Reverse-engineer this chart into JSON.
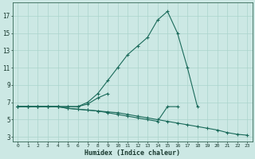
{
  "xlabel": "Humidex (Indice chaleur)",
  "background_color": "#cce8e4",
  "grid_color": "#aad4cc",
  "line_color": "#1a6a5a",
  "x_values": [
    0,
    1,
    2,
    3,
    4,
    5,
    6,
    7,
    8,
    9,
    10,
    11,
    12,
    13,
    14,
    15,
    16,
    17,
    18,
    19,
    20,
    21,
    22,
    23
  ],
  "series": {
    "line1": [
      6.5,
      6.5,
      6.5,
      6.5,
      6.5,
      6.5,
      6.5,
      7.0,
      8.0,
      9.5,
      11.0,
      12.5,
      13.5,
      14.5,
      16.5,
      17.5,
      15.0,
      11.0,
      6.5,
      null,
      null,
      null,
      null,
      null
    ],
    "line2": [
      6.5,
      6.5,
      6.5,
      6.5,
      6.5,
      6.5,
      6.5,
      6.8,
      7.5,
      8.0,
      null,
      null,
      null,
      null,
      null,
      null,
      null,
      null,
      null,
      null,
      null,
      null,
      null,
      null
    ],
    "line3": [
      6.5,
      6.5,
      6.5,
      6.5,
      6.5,
      6.3,
      6.2,
      6.1,
      6.0,
      5.9,
      5.8,
      5.6,
      5.4,
      5.2,
      5.0,
      4.8,
      4.6,
      4.4,
      4.2,
      4.0,
      3.8,
      3.5,
      3.3,
      3.2
    ],
    "line4": [
      6.5,
      6.5,
      6.5,
      6.5,
      6.5,
      6.3,
      6.2,
      6.1,
      6.0,
      5.8,
      5.6,
      5.4,
      5.2,
      5.0,
      4.8,
      6.5,
      6.5,
      null,
      null,
      null,
      null,
      null,
      null,
      null
    ]
  },
  "yticks": [
    3,
    5,
    7,
    9,
    11,
    13,
    15,
    17
  ],
  "ylim": [
    2.5,
    18.5
  ],
  "xlim": [
    -0.5,
    23.5
  ]
}
